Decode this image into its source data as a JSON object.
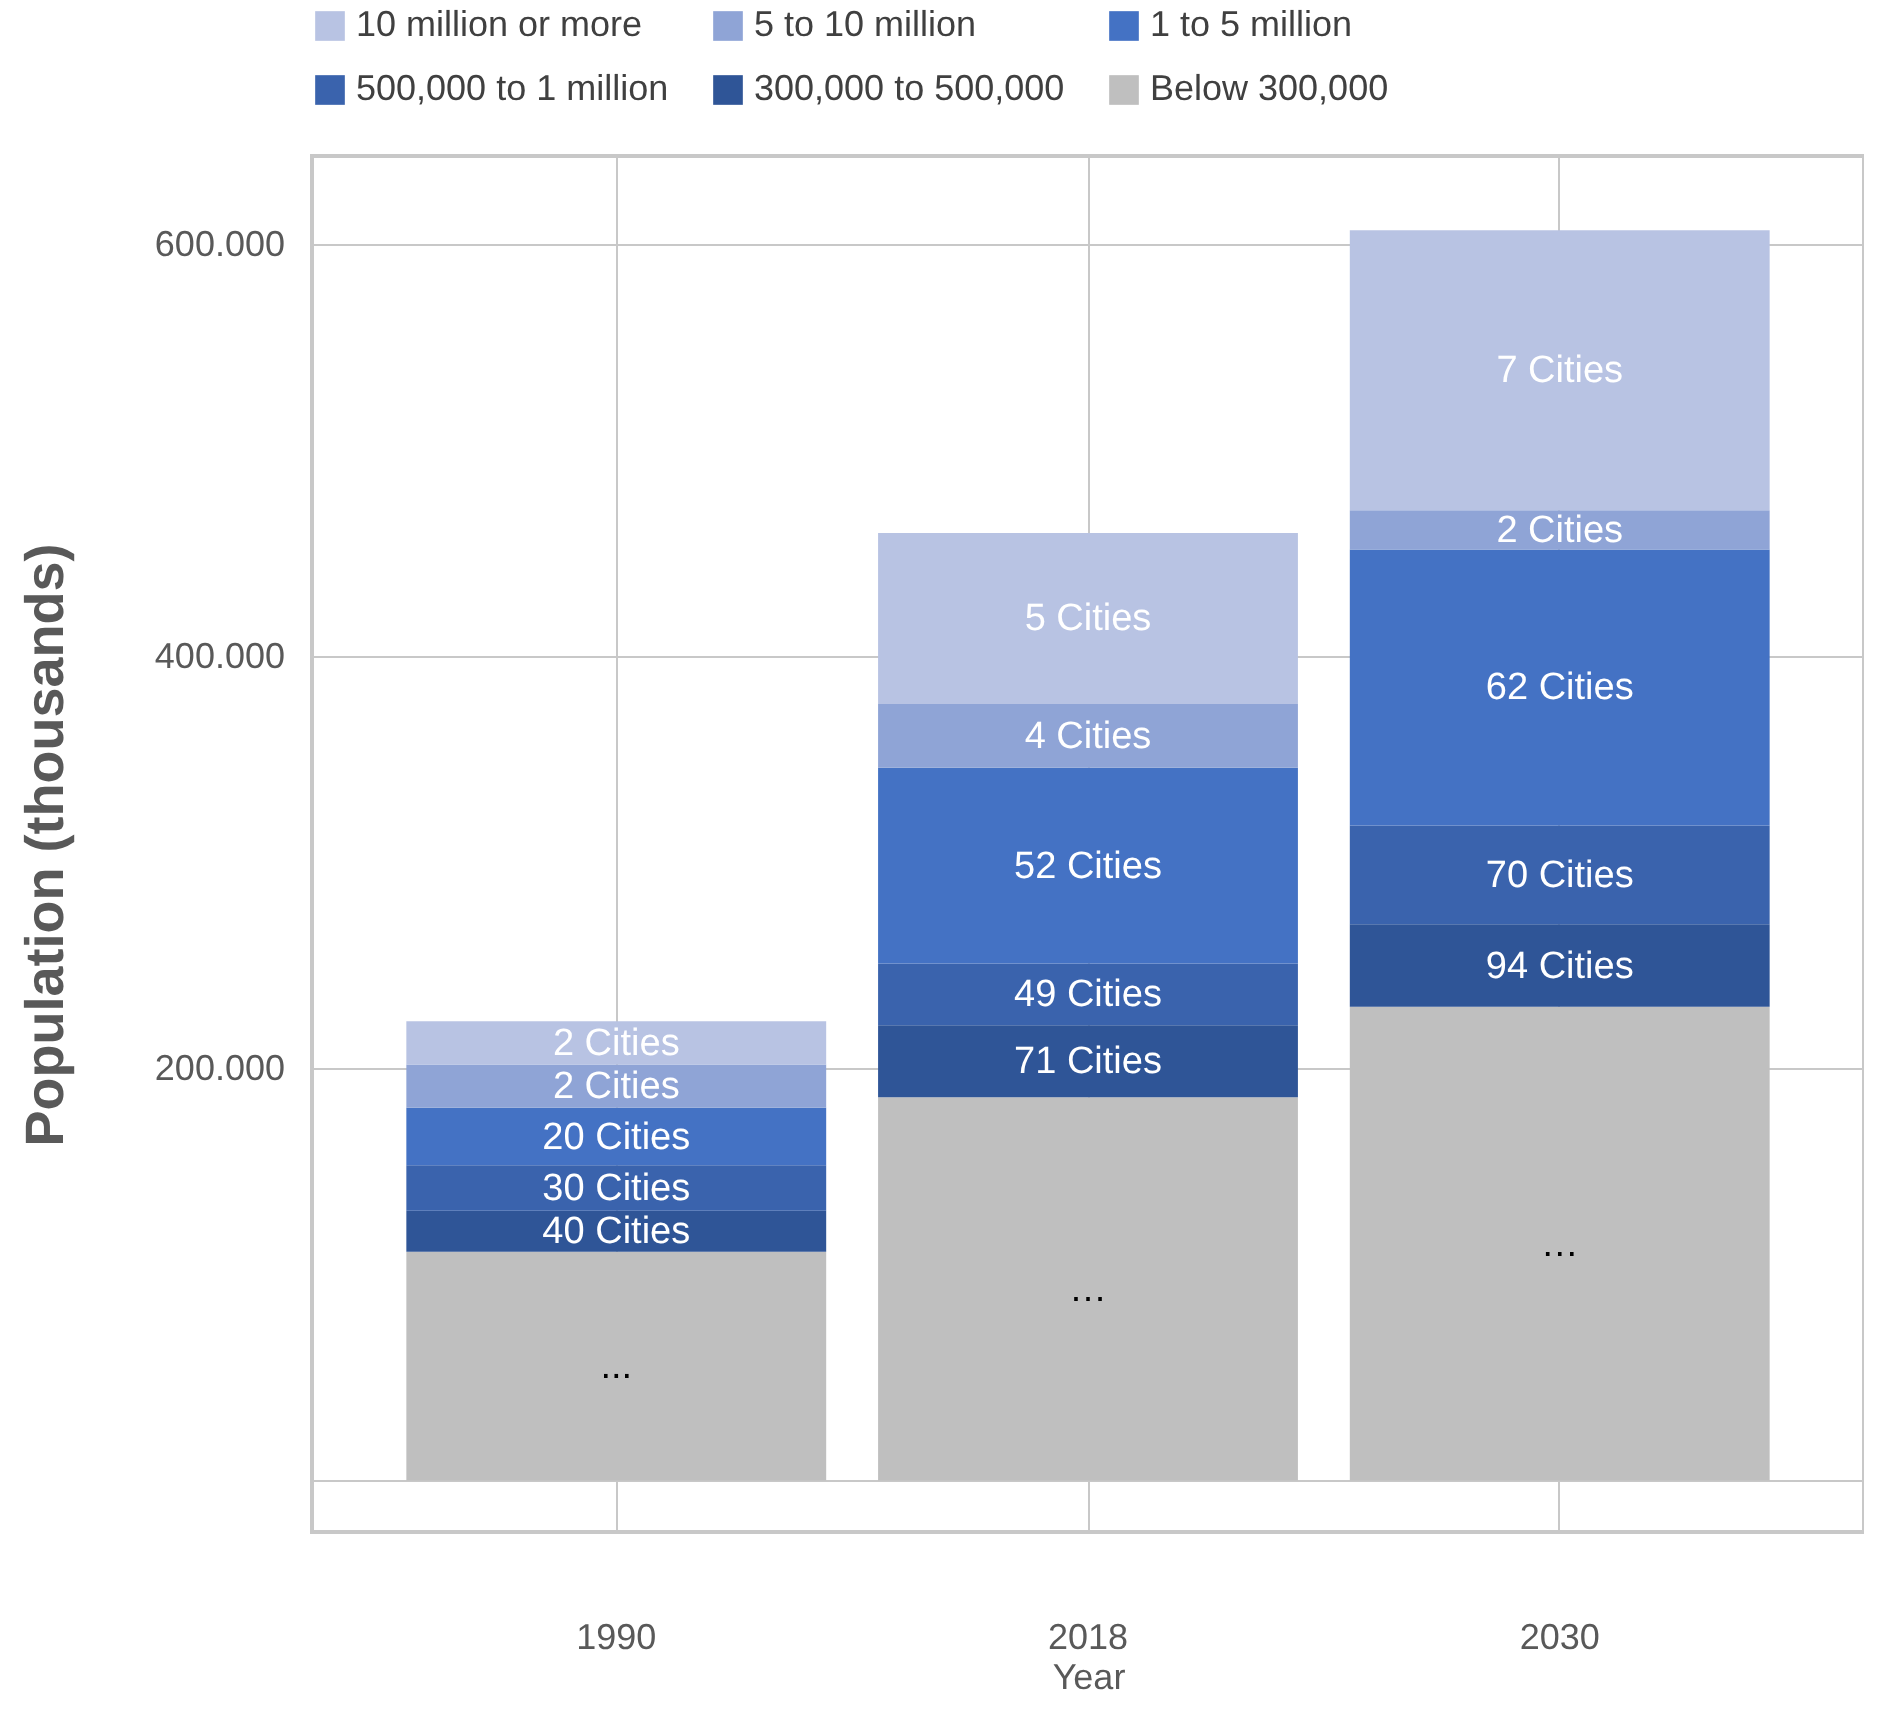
{
  "chart_data": {
    "type": "bar",
    "stacked": true,
    "xlabel": "Year",
    "ylabel": "Population (thousands)",
    "categories": [
      "1990",
      "2018",
      "2030"
    ],
    "series": [
      {
        "name": "Below 300,000",
        "color": "#bfbfbf",
        "values": [
          111,
          186,
          230
        ]
      },
      {
        "name": "300,000 to 500,000",
        "color": "#2f5597",
        "values": [
          20,
          35,
          40
        ]
      },
      {
        "name": "500,000 to 1 million",
        "color": "#3a63ad",
        "values": [
          22,
          30,
          48
        ]
      },
      {
        "name": "1 to 5 million",
        "color": "#4472c4",
        "values": [
          28,
          95,
          134
        ]
      },
      {
        "name": "5 to 10 million",
        "color": "#8fa4d6",
        "values": [
          21,
          31,
          19
        ]
      },
      {
        "name": "10 million or more",
        "color": "#b8c3e3",
        "values": [
          21,
          83,
          136
        ]
      }
    ],
    "annotations": [
      "...",
      "40 Cities",
      "30 Cities",
      "20 Cities",
      "2 Cities",
      "2 Cities",
      "…",
      "71 Cities",
      "49 Cities",
      "52 Cities",
      "4 Cities",
      "5 Cities",
      "…",
      "94 Cities",
      "70 Cities",
      "62 Cities",
      "2 Cities",
      "7 Cities"
    ],
    "ylim": [
      -25,
      643
    ],
    "yticks": [
      {
        "value": 0,
        "label": null
      },
      {
        "value": 200,
        "label": "200.000"
      },
      {
        "value": 400,
        "label": "400.000"
      },
      {
        "value": 600,
        "label": "600.000"
      }
    ],
    "grid": true,
    "legend": "top"
  }
}
